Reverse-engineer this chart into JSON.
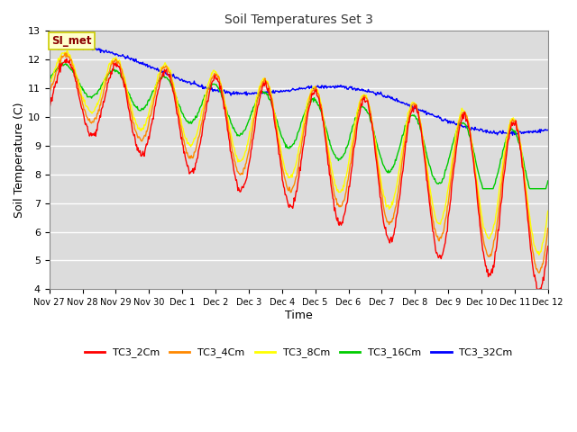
{
  "title": "Soil Temperatures Set 3",
  "xlabel": "Time",
  "ylabel": "Soil Temperature (C)",
  "ylim": [
    4.0,
    13.0
  ],
  "yticks": [
    4.0,
    5.0,
    6.0,
    7.0,
    8.0,
    9.0,
    10.0,
    11.0,
    12.0,
    13.0
  ],
  "xtick_labels": [
    "Nov 27",
    "Nov 28",
    "Nov 29",
    "Nov 30",
    "Dec 1",
    "Dec 2",
    "Dec 3",
    "Dec 4",
    "Dec 5",
    "Dec 6",
    "Dec 7",
    "Dec 8",
    "Dec 9",
    "Dec 10",
    "Dec 11",
    "Dec 12"
  ],
  "legend_labels": [
    "TC3_2Cm",
    "TC3_4Cm",
    "TC3_8Cm",
    "TC3_16Cm",
    "TC3_32Cm"
  ],
  "colors": [
    "#ff0000",
    "#ff8800",
    "#ffff00",
    "#00cc00",
    "#0000ff"
  ],
  "annotation_text": "SI_met",
  "annotation_color": "#8b0000",
  "annotation_bg": "#ffffcc",
  "annotation_border": "#cccc00",
  "plot_bg": "#dcdcdc",
  "n_points": 720
}
